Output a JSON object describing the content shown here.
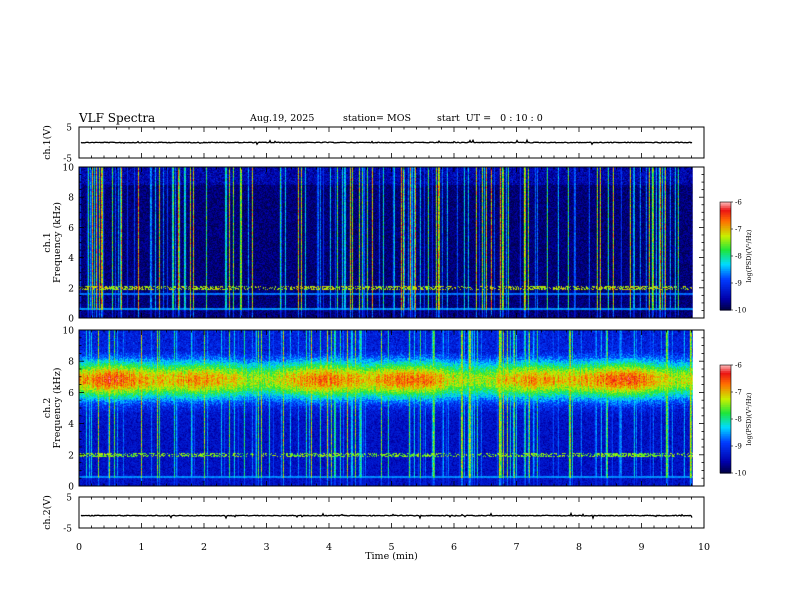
{
  "header": {
    "title": "VLF Spectra",
    "date": "Aug.19, 2025",
    "station": "station= MOS",
    "start": "start  UT =   0 : 10 : 0"
  },
  "chart_data": {
    "type": "heatmap",
    "x_axis": {
      "label": "Time  (min)",
      "range": [
        0,
        10
      ],
      "ticks": [
        "0",
        "1",
        "2",
        "3",
        "4",
        "5",
        "6",
        "7",
        "8",
        "9",
        "10"
      ],
      "data_end": 9.82
    },
    "panels": [
      {
        "name": "ch.1(V)",
        "type": "line",
        "ylabel": "ch.1(V)",
        "ylim": [
          -5,
          5
        ],
        "y_ticks": [
          "5",
          "-5"
        ],
        "baseline": 0
      },
      {
        "name": "ch.1 spectrogram",
        "type": "heatmap",
        "ylabel_top": "ch.1",
        "ylabel": "Frequency  (kHz)",
        "ylim": [
          0,
          10
        ],
        "y_ticks": [
          "0",
          "2",
          "4",
          "6",
          "8",
          "10"
        ],
        "colorbar": {
          "label": "log(PSD)(V²/Hz)",
          "range": [
            -10,
            -6
          ],
          "ticks": [
            "-6",
            "-7",
            "-8",
            "-9",
            "-10"
          ]
        },
        "features": [
          {
            "kind": "background",
            "level": -9.8
          },
          {
            "kind": "bursts",
            "description": "broadband impulsive vertical spikes 0-10 kHz",
            "peak_level": -6.5
          },
          {
            "kind": "line",
            "freq_khz": 0.6,
            "level": -8.6
          },
          {
            "kind": "line",
            "freq_khz": 1.6,
            "level": -8.7
          },
          {
            "kind": "band",
            "freq_khz": 2.0,
            "level": -7.3
          }
        ]
      },
      {
        "name": "ch.2 spectrogram",
        "type": "heatmap",
        "ylabel_top": "ch.2",
        "ylabel": "Frequency  (kHz)",
        "ylim": [
          0,
          10
        ],
        "y_ticks": [
          "0",
          "2",
          "4",
          "6",
          "8",
          "10"
        ],
        "colorbar": {
          "label": "log(PSD)(V²/Hz)",
          "range": [
            -10,
            -6
          ],
          "ticks": [
            "-6",
            "-7",
            "-8",
            "-9",
            "-10"
          ]
        },
        "features": [
          {
            "kind": "background",
            "level": -9.5
          },
          {
            "kind": "band",
            "freq_khz": 6.8,
            "width_khz": 2.8,
            "level": -6.8
          },
          {
            "kind": "bursts",
            "description": "broadband impulsive vertical spikes 0-10 kHz",
            "peak_level": -7.0
          },
          {
            "kind": "band",
            "freq_khz": 2.0,
            "level": -7.5
          },
          {
            "kind": "line",
            "freq_khz": 0.6,
            "level": -8.6
          }
        ]
      },
      {
        "name": "ch.2(V)",
        "type": "line",
        "ylabel": "ch.2(V)",
        "ylim": [
          -5,
          5
        ],
        "y_ticks": [
          "5",
          "-5"
        ],
        "baseline": -1
      }
    ]
  }
}
